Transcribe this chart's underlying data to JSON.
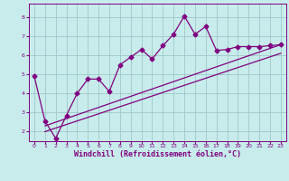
{
  "xlabel": "Windchill (Refroidissement éolien,°C)",
  "bg_color": "#c8ecec",
  "grid_color": "#a0c8c8",
  "line_color": "#800080",
  "xlim": [
    -0.5,
    23.5
  ],
  "ylim": [
    1.5,
    8.7
  ],
  "yticks": [
    2,
    3,
    4,
    5,
    6,
    7,
    8
  ],
  "xticks": [
    0,
    1,
    2,
    3,
    4,
    5,
    6,
    7,
    8,
    9,
    10,
    11,
    12,
    13,
    14,
    15,
    16,
    17,
    18,
    19,
    20,
    21,
    22,
    23
  ],
  "data_x": [
    0,
    1,
    2,
    3,
    4,
    5,
    6,
    7,
    8,
    9,
    10,
    11,
    12,
    13,
    14,
    15,
    16,
    17,
    18,
    19,
    20,
    21,
    22,
    23
  ],
  "data_y": [
    4.9,
    2.55,
    1.65,
    2.85,
    4.0,
    4.75,
    4.75,
    4.1,
    5.5,
    5.9,
    6.3,
    5.8,
    6.5,
    7.1,
    8.05,
    7.1,
    7.5,
    6.25,
    6.3,
    6.45,
    6.45,
    6.45,
    6.5,
    6.55
  ],
  "trend1_x": [
    1,
    23
  ],
  "trend1_y": [
    2.3,
    6.55
  ],
  "trend2_x": [
    1,
    23
  ],
  "trend2_y": [
    2.0,
    6.1
  ],
  "marker": "D",
  "marker_size": 2.5,
  "line_width": 0.9,
  "tick_fontsize": 4.5,
  "label_fontsize": 6.0
}
